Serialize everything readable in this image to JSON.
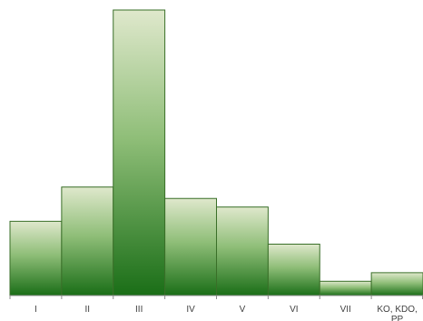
{
  "chart_data": {
    "type": "bar",
    "categories": [
      "I",
      "II",
      "III",
      "IV",
      "V",
      "VI",
      "VII",
      "KO, KDO, PP"
    ],
    "values": [
      26,
      38,
      100,
      34,
      31,
      18,
      5,
      8
    ],
    "ylim": [
      0,
      100
    ],
    "grid": false,
    "legend": "none",
    "colors": {
      "bar_top": "#dfe8cc",
      "bar_bottom": "#1a6e17",
      "bar_stroke": "#3a6f28",
      "axis": "#8c8c8c"
    }
  }
}
